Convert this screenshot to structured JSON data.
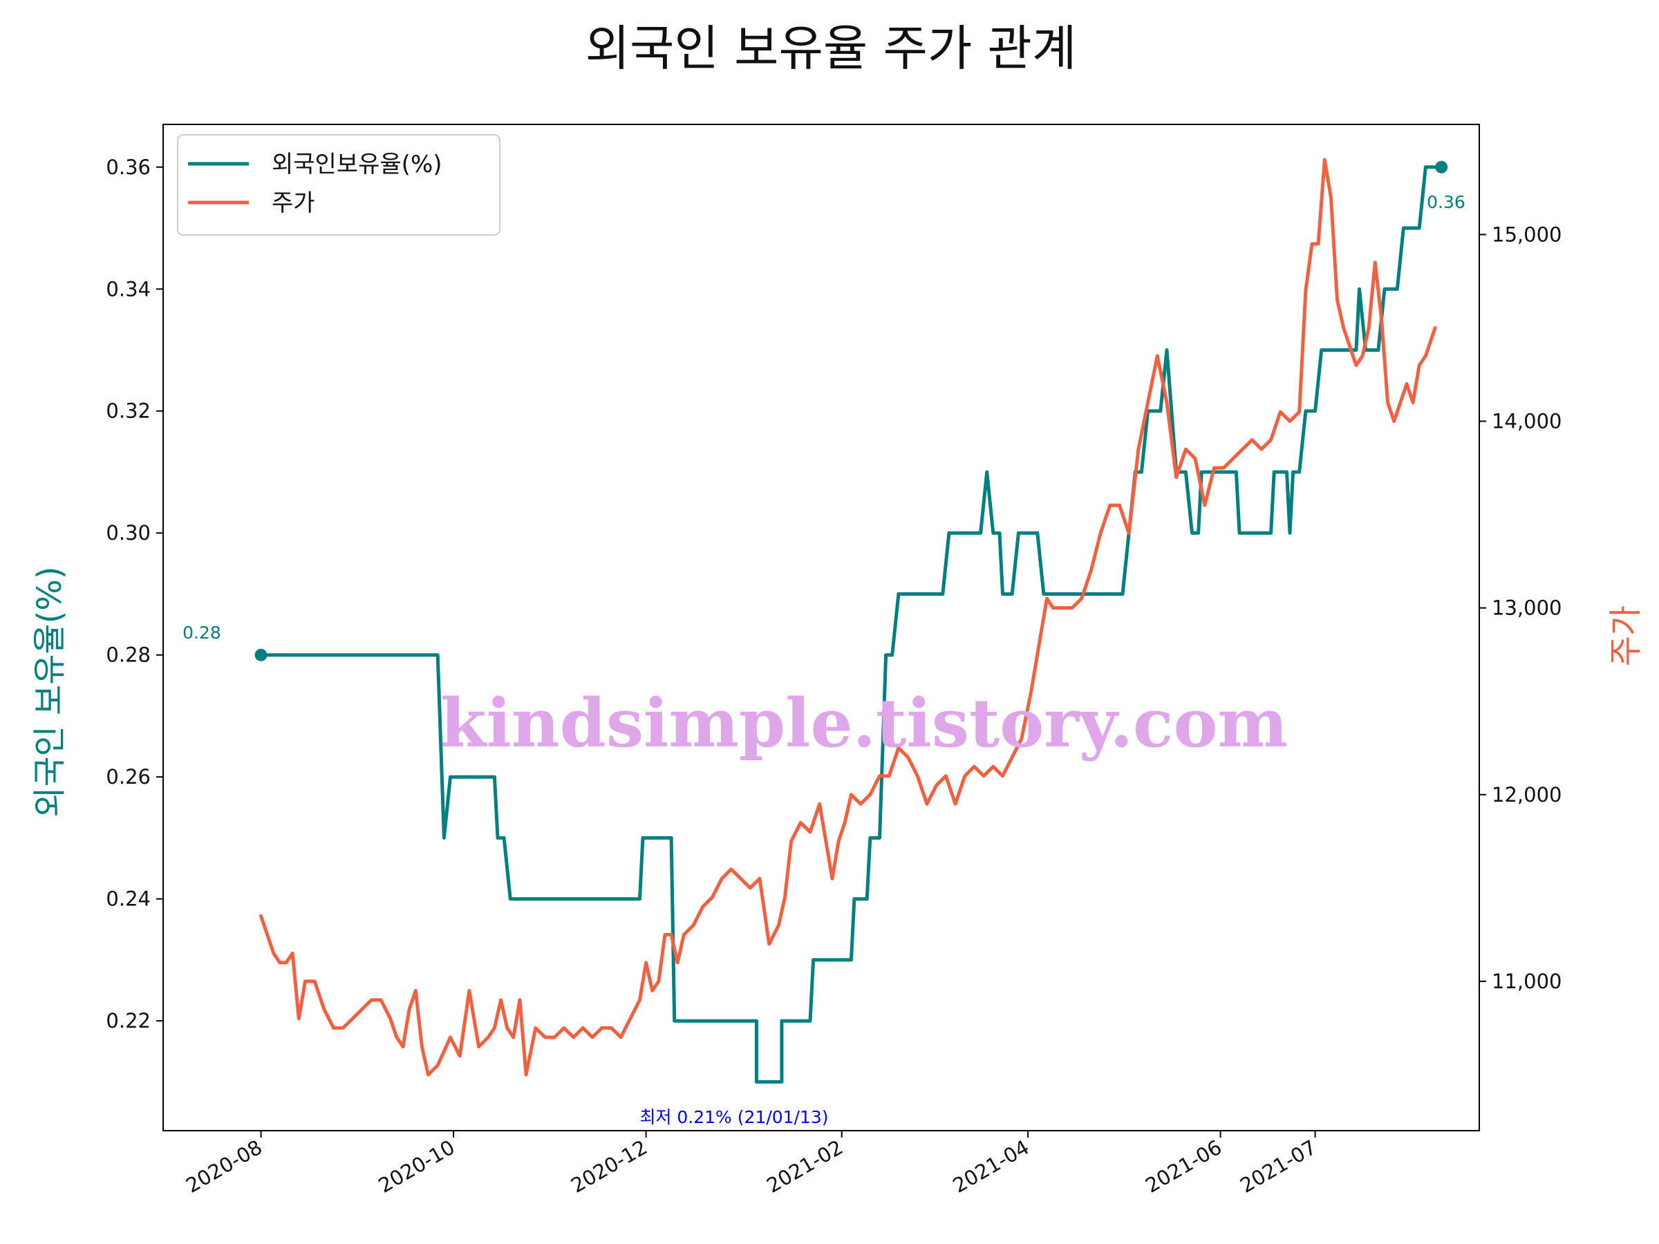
{
  "chart_data": {
    "type": "line",
    "title": "외국인 보유율 주가 관계",
    "ylabel_left": "외국인 보유율(%)",
    "ylabel_right": "주가",
    "xlabel": "",
    "x_ticks": [
      "2020-08",
      "2020-10",
      "2020-12",
      "2021-02",
      "2021-04",
      "2021-06",
      "2021-07"
    ],
    "ylim_left": [
      0.202,
      0.367
    ],
    "y_ticks_left": [
      "0.22",
      "0.24",
      "0.26",
      "0.28",
      "0.30",
      "0.32",
      "0.34",
      "0.36"
    ],
    "ylim_right": [
      10200,
      15590
    ],
    "y_ticks_right": [
      "11,000",
      "12,000",
      "13,000",
      "14,000",
      "15,000"
    ],
    "legend_position": "top-left",
    "grid": false,
    "colors": {
      "holding": "#008080",
      "price": "#f4603f",
      "annotation_min": "#0000ff",
      "watermark": "#e0a6ea"
    },
    "series": [
      {
        "name": "외국인보유율(%)",
        "axis": "left",
        "points": [
          [
            "2020-08-01",
            0.28
          ],
          [
            "2020-09-26",
            0.28
          ],
          [
            "2020-09-28",
            0.25
          ],
          [
            "2020-09-30",
            0.26
          ],
          [
            "2020-10-10",
            0.26
          ],
          [
            "2020-10-14",
            0.26
          ],
          [
            "2020-10-15",
            0.25
          ],
          [
            "2020-10-17",
            0.25
          ],
          [
            "2020-10-19",
            0.24
          ],
          [
            "2020-11-29",
            0.24
          ],
          [
            "2020-11-30",
            0.25
          ],
          [
            "2020-12-09",
            0.25
          ],
          [
            "2020-12-10",
            0.22
          ],
          [
            "2021-01-05",
            0.22
          ],
          [
            "2021-01-05",
            0.21
          ],
          [
            "2021-01-13",
            0.21
          ],
          [
            "2021-01-13",
            0.22
          ],
          [
            "2021-01-22",
            0.22
          ],
          [
            "2021-01-23",
            0.23
          ],
          [
            "2021-02-04",
            0.23
          ],
          [
            "2021-02-05",
            0.24
          ],
          [
            "2021-02-09",
            0.24
          ],
          [
            "2021-02-10",
            0.25
          ],
          [
            "2021-02-13",
            0.25
          ],
          [
            "2021-02-15",
            0.28
          ],
          [
            "2021-02-17",
            0.28
          ],
          [
            "2021-02-19",
            0.29
          ],
          [
            "2021-03-05",
            0.29
          ],
          [
            "2021-03-07",
            0.3
          ],
          [
            "2021-03-17",
            0.3
          ],
          [
            "2021-03-19",
            0.31
          ],
          [
            "2021-03-21",
            0.3
          ],
          [
            "2021-03-23",
            0.3
          ],
          [
            "2021-03-24",
            0.29
          ],
          [
            "2021-03-27",
            0.29
          ],
          [
            "2021-03-29",
            0.3
          ],
          [
            "2021-04-04",
            0.3
          ],
          [
            "2021-04-06",
            0.29
          ],
          [
            "2021-05-01",
            0.29
          ],
          [
            "2021-05-05",
            0.31
          ],
          [
            "2021-05-07",
            0.31
          ],
          [
            "2021-05-09",
            0.32
          ],
          [
            "2021-05-13",
            0.32
          ],
          [
            "2021-05-15",
            0.33
          ],
          [
            "2021-05-18",
            0.31
          ],
          [
            "2021-05-21",
            0.31
          ],
          [
            "2021-05-23",
            0.3
          ],
          [
            "2021-05-25",
            0.3
          ],
          [
            "2021-05-26",
            0.31
          ],
          [
            "2021-06-06",
            0.31
          ],
          [
            "2021-06-07",
            0.3
          ],
          [
            "2021-06-17",
            0.3
          ],
          [
            "2021-06-18",
            0.31
          ],
          [
            "2021-06-22",
            0.31
          ],
          [
            "2021-06-23",
            0.3
          ],
          [
            "2021-06-24",
            0.31
          ],
          [
            "2021-06-26",
            0.31
          ],
          [
            "2021-06-28",
            0.32
          ],
          [
            "2021-07-01",
            0.32
          ],
          [
            "2021-07-03",
            0.33
          ],
          [
            "2021-07-14",
            0.33
          ],
          [
            "2021-07-15",
            0.34
          ],
          [
            "2021-07-17",
            0.33
          ],
          [
            "2021-07-21",
            0.33
          ],
          [
            "2021-07-23",
            0.34
          ],
          [
            "2021-07-27",
            0.34
          ],
          [
            "2021-07-29",
            0.35
          ],
          [
            "2021-08-03",
            0.35
          ],
          [
            "2021-08-05",
            0.36
          ],
          [
            "2021-08-10",
            0.36
          ]
        ]
      },
      {
        "name": "주가",
        "axis": "right",
        "points": [
          [
            "2020-08-01",
            11350
          ],
          [
            "2020-08-03",
            11250
          ],
          [
            "2020-08-05",
            11150
          ],
          [
            "2020-08-07",
            11100
          ],
          [
            "2020-08-09",
            11100
          ],
          [
            "2020-08-11",
            11150
          ],
          [
            "2020-08-13",
            10800
          ],
          [
            "2020-08-15",
            11000
          ],
          [
            "2020-08-18",
            11000
          ],
          [
            "2020-08-21",
            10850
          ],
          [
            "2020-08-24",
            10750
          ],
          [
            "2020-08-27",
            10750
          ],
          [
            "2020-08-30",
            10800
          ],
          [
            "2020-09-02",
            10850
          ],
          [
            "2020-09-05",
            10900
          ],
          [
            "2020-09-08",
            10900
          ],
          [
            "2020-09-11",
            10800
          ],
          [
            "2020-09-13",
            10700
          ],
          [
            "2020-09-15",
            10650
          ],
          [
            "2020-09-17",
            10850
          ],
          [
            "2020-09-19",
            10950
          ],
          [
            "2020-09-21",
            10650
          ],
          [
            "2020-09-23",
            10500
          ],
          [
            "2020-09-26",
            10550
          ],
          [
            "2020-09-30",
            10700
          ],
          [
            "2020-10-03",
            10600
          ],
          [
            "2020-10-06",
            10950
          ],
          [
            "2020-10-09",
            10650
          ],
          [
            "2020-10-12",
            10700
          ],
          [
            "2020-10-14",
            10750
          ],
          [
            "2020-10-16",
            10900
          ],
          [
            "2020-10-18",
            10750
          ],
          [
            "2020-10-20",
            10700
          ],
          [
            "2020-10-22",
            10900
          ],
          [
            "2020-10-24",
            10500
          ],
          [
            "2020-10-27",
            10750
          ],
          [
            "2020-10-30",
            10700
          ],
          [
            "2020-11-02",
            10700
          ],
          [
            "2020-11-05",
            10750
          ],
          [
            "2020-11-08",
            10700
          ],
          [
            "2020-11-11",
            10750
          ],
          [
            "2020-11-14",
            10700
          ],
          [
            "2020-11-17",
            10750
          ],
          [
            "2020-11-20",
            10750
          ],
          [
            "2020-11-23",
            10700
          ],
          [
            "2020-11-26",
            10800
          ],
          [
            "2020-11-29",
            10900
          ],
          [
            "2020-12-01",
            11100
          ],
          [
            "2020-12-03",
            10950
          ],
          [
            "2020-12-05",
            11000
          ],
          [
            "2020-12-07",
            11250
          ],
          [
            "2020-12-09",
            11250
          ],
          [
            "2020-12-11",
            11100
          ],
          [
            "2020-12-13",
            11250
          ],
          [
            "2020-12-16",
            11300
          ],
          [
            "2020-12-19",
            11400
          ],
          [
            "2020-12-22",
            11450
          ],
          [
            "2020-12-25",
            11550
          ],
          [
            "2020-12-28",
            11600
          ],
          [
            "2020-12-31",
            11550
          ],
          [
            "2021-01-03",
            11500
          ],
          [
            "2021-01-06",
            11550
          ],
          [
            "2021-01-09",
            11200
          ],
          [
            "2021-01-12",
            11300
          ],
          [
            "2021-01-14",
            11450
          ],
          [
            "2021-01-16",
            11750
          ],
          [
            "2021-01-19",
            11850
          ],
          [
            "2021-01-22",
            11800
          ],
          [
            "2021-01-25",
            11950
          ],
          [
            "2021-01-27",
            11750
          ],
          [
            "2021-01-29",
            11550
          ],
          [
            "2021-01-31",
            11750
          ],
          [
            "2021-02-02",
            11850
          ],
          [
            "2021-02-04",
            12000
          ],
          [
            "2021-02-07",
            11950
          ],
          [
            "2021-02-10",
            12000
          ],
          [
            "2021-02-13",
            12100
          ],
          [
            "2021-02-16",
            12100
          ],
          [
            "2021-02-19",
            12250
          ],
          [
            "2021-02-22",
            12200
          ],
          [
            "2021-02-25",
            12100
          ],
          [
            "2021-02-28",
            11950
          ],
          [
            "2021-03-03",
            12050
          ],
          [
            "2021-03-06",
            12100
          ],
          [
            "2021-03-09",
            11950
          ],
          [
            "2021-03-12",
            12100
          ],
          [
            "2021-03-15",
            12150
          ],
          [
            "2021-03-18",
            12100
          ],
          [
            "2021-03-21",
            12150
          ],
          [
            "2021-03-24",
            12100
          ],
          [
            "2021-03-27",
            12200
          ],
          [
            "2021-03-30",
            12300
          ],
          [
            "2021-04-02",
            12550
          ],
          [
            "2021-04-05",
            12850
          ],
          [
            "2021-04-07",
            13050
          ],
          [
            "2021-04-09",
            13000
          ],
          [
            "2021-04-12",
            13000
          ],
          [
            "2021-04-15",
            13000
          ],
          [
            "2021-04-18",
            13050
          ],
          [
            "2021-04-21",
            13200
          ],
          [
            "2021-04-24",
            13400
          ],
          [
            "2021-04-27",
            13550
          ],
          [
            "2021-04-30",
            13550
          ],
          [
            "2021-05-03",
            13400
          ],
          [
            "2021-05-06",
            13850
          ],
          [
            "2021-05-09",
            14100
          ],
          [
            "2021-05-12",
            14350
          ],
          [
            "2021-05-15",
            14100
          ],
          [
            "2021-05-18",
            13700
          ],
          [
            "2021-05-21",
            13850
          ],
          [
            "2021-05-24",
            13800
          ],
          [
            "2021-05-27",
            13550
          ],
          [
            "2021-05-30",
            13750
          ],
          [
            "2021-06-02",
            13750
          ],
          [
            "2021-06-05",
            13800
          ],
          [
            "2021-06-08",
            13850
          ],
          [
            "2021-06-11",
            13900
          ],
          [
            "2021-06-14",
            13850
          ],
          [
            "2021-06-17",
            13900
          ],
          [
            "2021-06-20",
            14050
          ],
          [
            "2021-06-23",
            14000
          ],
          [
            "2021-06-26",
            14050
          ],
          [
            "2021-06-28",
            14700
          ],
          [
            "2021-06-30",
            14950
          ],
          [
            "2021-07-02",
            14950
          ],
          [
            "2021-07-04",
            15400
          ],
          [
            "2021-07-06",
            15200
          ],
          [
            "2021-07-08",
            14650
          ],
          [
            "2021-07-10",
            14500
          ],
          [
            "2021-07-12",
            14400
          ],
          [
            "2021-07-14",
            14300
          ],
          [
            "2021-07-16",
            14350
          ],
          [
            "2021-07-18",
            14500
          ],
          [
            "2021-07-20",
            14850
          ],
          [
            "2021-07-22",
            14550
          ],
          [
            "2021-07-24",
            14100
          ],
          [
            "2021-07-26",
            14000
          ],
          [
            "2021-07-28",
            14100
          ],
          [
            "2021-07-30",
            14200
          ],
          [
            "2021-08-01",
            14100
          ],
          [
            "2021-08-03",
            14300
          ],
          [
            "2021-08-05",
            14350
          ],
          [
            "2021-08-08",
            14500
          ]
        ]
      }
    ],
    "annotations": {
      "start_value": "0.28",
      "end_value": "0.36",
      "min_label": "최저 0.21% (21/01/13)"
    },
    "watermark": "kindsimple.tistory.com"
  }
}
